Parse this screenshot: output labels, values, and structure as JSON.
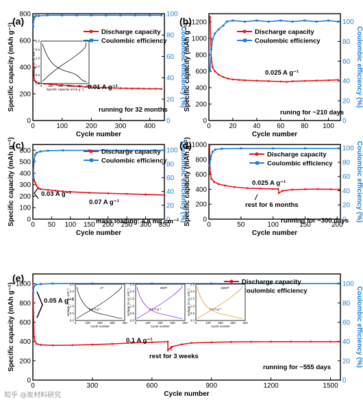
{
  "colors": {
    "discharge": "#e8141c",
    "coulombic": "#1f7fd6",
    "inset1": "#222222",
    "inset2": "#8a2be2",
    "inset3": "#e8921e"
  },
  "chart_data": [
    {
      "panel": "(a)",
      "type": "line",
      "xlabel": "Cycle number",
      "ylabel": "Specific capacity (mAh g⁻¹)",
      "y2label": "Coulombic efficiency (%)",
      "xlim": [
        0,
        450
      ],
      "ylim": [
        0,
        800
      ],
      "y2lim": [
        0,
        100
      ],
      "xticks": [
        0,
        100,
        200,
        300,
        400
      ],
      "yticks": [
        0,
        200,
        400,
        600,
        800
      ],
      "y2ticks": [
        0,
        20,
        40,
        60,
        80,
        100
      ],
      "series": [
        {
          "name": "Discharge capacity",
          "axis": "left",
          "x": [
            1,
            3,
            6,
            10,
            20,
            40,
            60,
            80,
            100,
            120,
            140,
            160,
            180,
            200,
            220,
            240,
            260,
            280,
            300,
            320,
            340,
            360,
            380,
            400,
            420,
            440
          ],
          "y": [
            420,
            330,
            300,
            290,
            280,
            275,
            272,
            268,
            265,
            262,
            258,
            255,
            252,
            250,
            248,
            246,
            245,
            244,
            242,
            241,
            240,
            240,
            239,
            238,
            238,
            237
          ]
        },
        {
          "name": "Coulombic efficiency",
          "axis": "right",
          "x": [
            1,
            3,
            6,
            10,
            20,
            50,
            100,
            150,
            200,
            250,
            300,
            350,
            400,
            440
          ],
          "y": [
            88,
            95,
            97,
            98,
            98,
            98.5,
            98.5,
            98.5,
            98.5,
            98.5,
            98.5,
            98.5,
            98.5,
            98.5
          ]
        }
      ],
      "annotations": [
        "0.01 A g⁻¹",
        "running for 32 months"
      ]
    },
    {
      "panel": "(b)",
      "type": "line",
      "xlabel": "Cycle number",
      "ylabel": "Specific capacity (mAh g⁻¹)",
      "y2label": "Coulombic efficiency (%)",
      "xlim": [
        0,
        110
      ],
      "ylim": [
        0,
        1300
      ],
      "y2lim": [
        0,
        108
      ],
      "xticks": [
        0,
        20,
        40,
        60,
        80,
        100
      ],
      "yticks": [
        0,
        200,
        400,
        600,
        800,
        1000,
        1200
      ],
      "y2ticks": [
        0,
        20,
        40,
        60,
        80,
        100
      ],
      "series": [
        {
          "name": "Discharge capacity",
          "axis": "left",
          "x": [
            1,
            2,
            3,
            5,
            8,
            12,
            16,
            20,
            25,
            30,
            40,
            50,
            60,
            65,
            70,
            80,
            90,
            100,
            108
          ],
          "y": [
            1260,
            760,
            650,
            600,
            560,
            530,
            510,
            500,
            495,
            490,
            485,
            480,
            475,
            470,
            478,
            482,
            486,
            490,
            495
          ]
        },
        {
          "name": "Coulombic efficiency",
          "axis": "right",
          "x": [
            1,
            2,
            3,
            5,
            8,
            12,
            15,
            20,
            30,
            40,
            50,
            60,
            70,
            80,
            90,
            100,
            108
          ],
          "y": [
            50,
            72,
            82,
            88,
            92,
            96,
            100,
            101,
            100,
            101,
            100,
            101,
            100,
            101,
            100,
            101,
            100
          ]
        }
      ],
      "annotations": [
        "0.025 A g⁻¹",
        "runing for ~210 days"
      ]
    },
    {
      "panel": "(c)",
      "type": "line",
      "xlabel": "Cycle number",
      "ylabel": "Specific capacity (mAh g⁻¹)",
      "y2label": "Coulombic efficiency (%)",
      "xlim": [
        0,
        350
      ],
      "ylim": [
        0,
        650
      ],
      "y2lim": [
        0,
        108
      ],
      "xticks": [
        0,
        50,
        100,
        150,
        200,
        250,
        300,
        350
      ],
      "yticks": [
        0,
        100,
        200,
        300,
        400,
        500,
        600
      ],
      "y2ticks": [
        0,
        20,
        40,
        60,
        80,
        100
      ],
      "series": [
        {
          "name": "Discharge capacity",
          "axis": "left",
          "x": [
            1,
            3,
            6,
            10,
            15,
            20,
            40,
            60,
            80,
            100,
            150,
            200,
            250,
            300,
            350
          ],
          "y": [
            440,
            340,
            320,
            290,
            270,
            262,
            255,
            248,
            242,
            238,
            230,
            225,
            220,
            215,
            210
          ]
        },
        {
          "name": "Coulombic efficiency",
          "axis": "right",
          "x": [
            1,
            3,
            6,
            10,
            20,
            40,
            80,
            150,
            250,
            350
          ],
          "y": [
            60,
            85,
            93,
            96,
            98,
            99,
            99.5,
            99.5,
            99.5,
            99.5
          ]
        }
      ],
      "annotations": [
        "0.03  A g⁻¹",
        "0.07 A g⁻¹",
        "mass loading: 4.8 mg cm⁻²"
      ]
    },
    {
      "panel": "(d)",
      "type": "line",
      "xlabel": "Cycle number",
      "ylabel": "Specific capacity (mAh g⁻¹)",
      "y2label": "Coulombic efficiency (%)",
      "xlim": [
        0,
        205
      ],
      "ylim": [
        0,
        1000
      ],
      "y2lim": [
        0,
        105
      ],
      "xticks": [
        0,
        50,
        100,
        150,
        200
      ],
      "yticks": [
        0,
        200,
        400,
        600,
        800,
        1000
      ],
      "y2ticks": [
        0,
        20,
        40,
        60,
        80,
        100
      ],
      "series": [
        {
          "name": "Discharge capacity",
          "axis": "left",
          "x": [
            1,
            2,
            4,
            8,
            15,
            25,
            40,
            60,
            80,
            100,
            108,
            109,
            115,
            130,
            150,
            170,
            190,
            203
          ],
          "y": [
            980,
            620,
            540,
            500,
            470,
            450,
            430,
            415,
            410,
            405,
            405,
            350,
            380,
            395,
            400,
            402,
            400,
            398
          ]
        },
        {
          "name": "Coulombic efficiency",
          "axis": "right",
          "x": [
            1,
            3,
            6,
            10,
            20,
            50,
            100,
            150,
            203
          ],
          "y": [
            75,
            88,
            95,
            98,
            99,
            99.5,
            99.5,
            99.5,
            99.5
          ]
        }
      ],
      "annotations": [
        "0.025 A g⁻¹",
        "rest for 6 months",
        "running for ~300 days"
      ]
    },
    {
      "panel": "(e)",
      "type": "line",
      "xlabel": "Cycle number",
      "ylabel": "Specific capacity (mAh g⁻¹)",
      "y2label": "Coulombic efficiency (%)",
      "xlim": [
        0,
        1550
      ],
      "ylim": [
        0,
        1100
      ],
      "y2lim": [
        0,
        110
      ],
      "xticks": [
        0,
        300,
        600,
        900,
        1200,
        1500
      ],
      "yticks": [
        0,
        200,
        400,
        600,
        800,
        1000
      ],
      "y2ticks": [
        0,
        20,
        40,
        60,
        80,
        100
      ],
      "series": [
        {
          "name": "Discharge capacity",
          "axis": "left",
          "x": [
            1,
            3,
            6,
            10,
            20,
            40,
            100,
            200,
            300,
            400,
            500,
            600,
            680,
            681,
            700,
            750,
            800,
            900,
            1000,
            1100,
            1200,
            1300,
            1400,
            1500,
            1540
          ],
          "y": [
            1000,
            700,
            450,
            400,
            375,
            365,
            360,
            362,
            368,
            375,
            385,
            392,
            398,
            310,
            345,
            370,
            385,
            392,
            395,
            397,
            398,
            398,
            398,
            398,
            398
          ]
        },
        {
          "name": "Coulombic efficiency",
          "axis": "right",
          "x": [
            1,
            5,
            15,
            40,
            100,
            300,
            600,
            900,
            1200,
            1540
          ],
          "y": [
            90,
            97,
            99,
            99.5,
            100,
            100,
            100,
            100,
            100,
            100
          ]
        }
      ],
      "annotations": [
        "0.05 A g⁻¹",
        "0.1 A g⁻¹",
        "rest for 3 weeks",
        "running for ~555 days"
      ],
      "insets": [
        {
          "label": "1ˢᵗ",
          "curve_label": "0.1 A g⁻¹",
          "xlabel": "Cycle number",
          "ylabel": "Voltage (V vs. K/K⁺)",
          "xticks": [
            0,
            100,
            200,
            300,
            400
          ],
          "yticks": [
            0.0,
            0.5,
            1.0,
            1.5,
            2.0,
            2.5
          ]
        },
        {
          "label": "800ᵗʰ",
          "curve_label": "0.1 A g⁻¹",
          "xlabel": "Cycle number",
          "ylabel": "Voltage (V vs. K/K⁺)",
          "xticks": [
            0,
            100,
            200,
            300,
            400
          ],
          "yticks": [
            0.0,
            0.5,
            1.0,
            1.5,
            2.0,
            2.5
          ]
        },
        {
          "label": "1500ᵗʰ",
          "curve_label": "0.1 A g⁻¹",
          "xlabel": "Cycle number",
          "ylabel": "Voltage (V vs. K/K⁺)",
          "xticks": [
            0,
            100,
            200,
            300,
            400
          ],
          "yticks": [
            0.0,
            0.5,
            1.0,
            1.5,
            2.0,
            2.5
          ]
        }
      ]
    }
  ],
  "inset_a": {
    "xlabel": "Specific capacity (mAh g⁻¹)",
    "ylabel": "Voltage (V vs. K/K⁺)",
    "xticks": [
      0,
      100,
      200,
      300,
      400,
      500
    ],
    "yticks": [
      0.0,
      0.5,
      1.0,
      1.5,
      2.0,
      2.5
    ]
  },
  "watermark": "知乎 @炭材料研究"
}
